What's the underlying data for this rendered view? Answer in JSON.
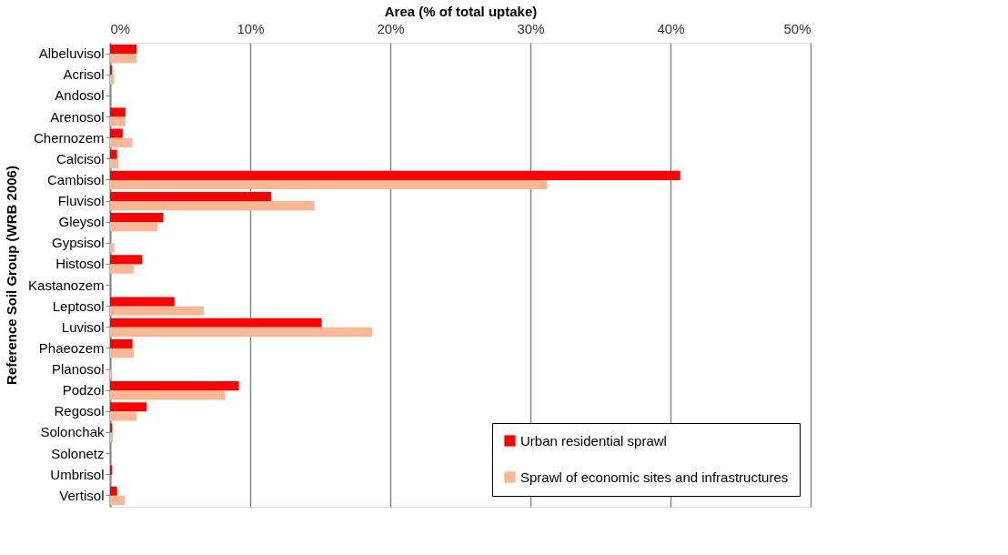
{
  "chart_data": {
    "type": "bar",
    "orientation": "horizontal",
    "xlabel": "Area (% of total uptake)",
    "ylabel": "Reference Soil Group (WRB 2006)",
    "categories": [
      "Albeluvisol",
      "Acrisol",
      "Andosol",
      "Arenosol",
      "Chernozem",
      "Calcisol",
      "Cambisol",
      "Fluvisol",
      "Gleysol",
      "Gypsisol",
      "Histosol",
      "Kastanozem",
      "Leptosol",
      "Luvisol",
      "Phaeozem",
      "Planosol",
      "Podzol",
      "Regosol",
      "Solonchak",
      "Solonetz",
      "Umbrisol",
      "Vertisol"
    ],
    "series": [
      {
        "name": "Urban residential sprawl",
        "color": "#ff0000",
        "values": [
          1.9,
          0.15,
          0,
          1.1,
          0.9,
          0.5,
          40.7,
          11.5,
          3.8,
          0,
          2.3,
          0,
          4.6,
          15.1,
          1.6,
          0,
          9.2,
          2.6,
          0.15,
          0,
          0.15,
          0.5
        ]
      },
      {
        "name": "Sprawl of economic sites and infrastructures",
        "color": "#f9b793",
        "values": [
          1.9,
          0.3,
          0,
          1.1,
          1.6,
          0.6,
          31.2,
          14.6,
          3.4,
          0.3,
          1.7,
          0,
          6.7,
          18.7,
          1.7,
          0.15,
          8.2,
          1.9,
          0.2,
          0,
          0,
          1.05
        ]
      }
    ],
    "xlim": [
      0,
      50
    ],
    "xticks": [
      {
        "value": 0,
        "label": "0%"
      },
      {
        "value": 10,
        "label": "10%"
      },
      {
        "value": 20,
        "label": "20%"
      },
      {
        "value": 30,
        "label": "30%"
      },
      {
        "value": 40,
        "label": "40%"
      },
      {
        "value": 50,
        "label": "50%"
      }
    ],
    "grid": "x",
    "legend": "bottom right"
  }
}
